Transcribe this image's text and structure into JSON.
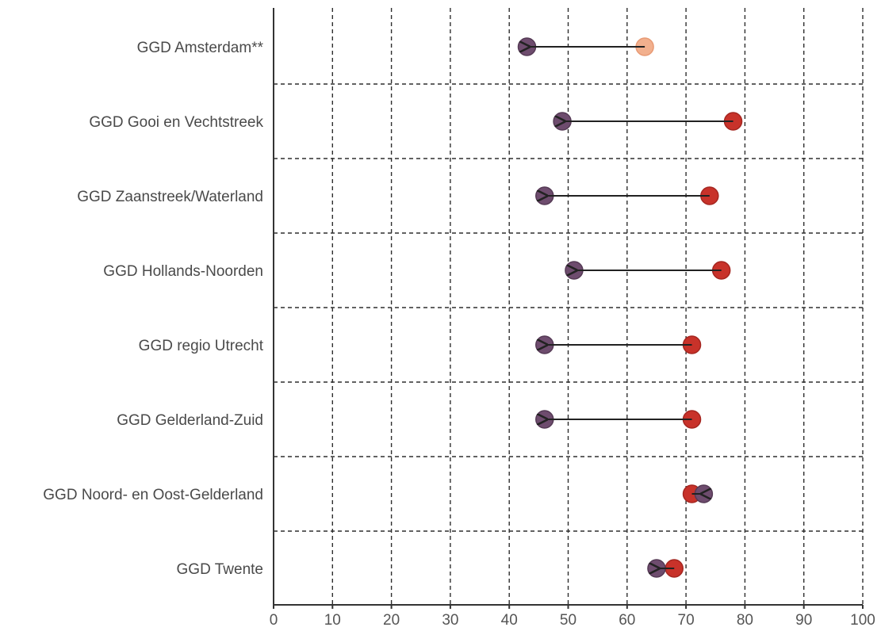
{
  "chart_data": {
    "type": "dumbbell",
    "xlim": [
      0,
      100
    ],
    "xticks": [
      0,
      10,
      20,
      30,
      40,
      50,
      60,
      70,
      80,
      90,
      100
    ],
    "grid": true,
    "categories": [
      "GGD Amsterdam**",
      "GGD Gooi en Vechtstreek",
      "GGD Zaanstreek/Waterland",
      "GGD Hollands-Noorden",
      "GGD regio Utrecht",
      "GGD Gelderland-Zuid",
      "GGD Noord- en Oost-Gelderland",
      "GGD Twente"
    ],
    "series": [
      {
        "values": [
          63,
          78,
          74,
          76,
          71,
          71,
          71,
          68
        ]
      },
      {
        "values": [
          43,
          49,
          46,
          51,
          46,
          46,
          73,
          65
        ]
      }
    ],
    "start_colors": [
      "#f2b08e",
      "#c8322a",
      "#c8322a",
      "#c8322a",
      "#c8322a",
      "#c8322a",
      "#c8322a",
      "#c8322a"
    ],
    "end_color": "#6e4c6e",
    "arrow_color": "#222222"
  }
}
